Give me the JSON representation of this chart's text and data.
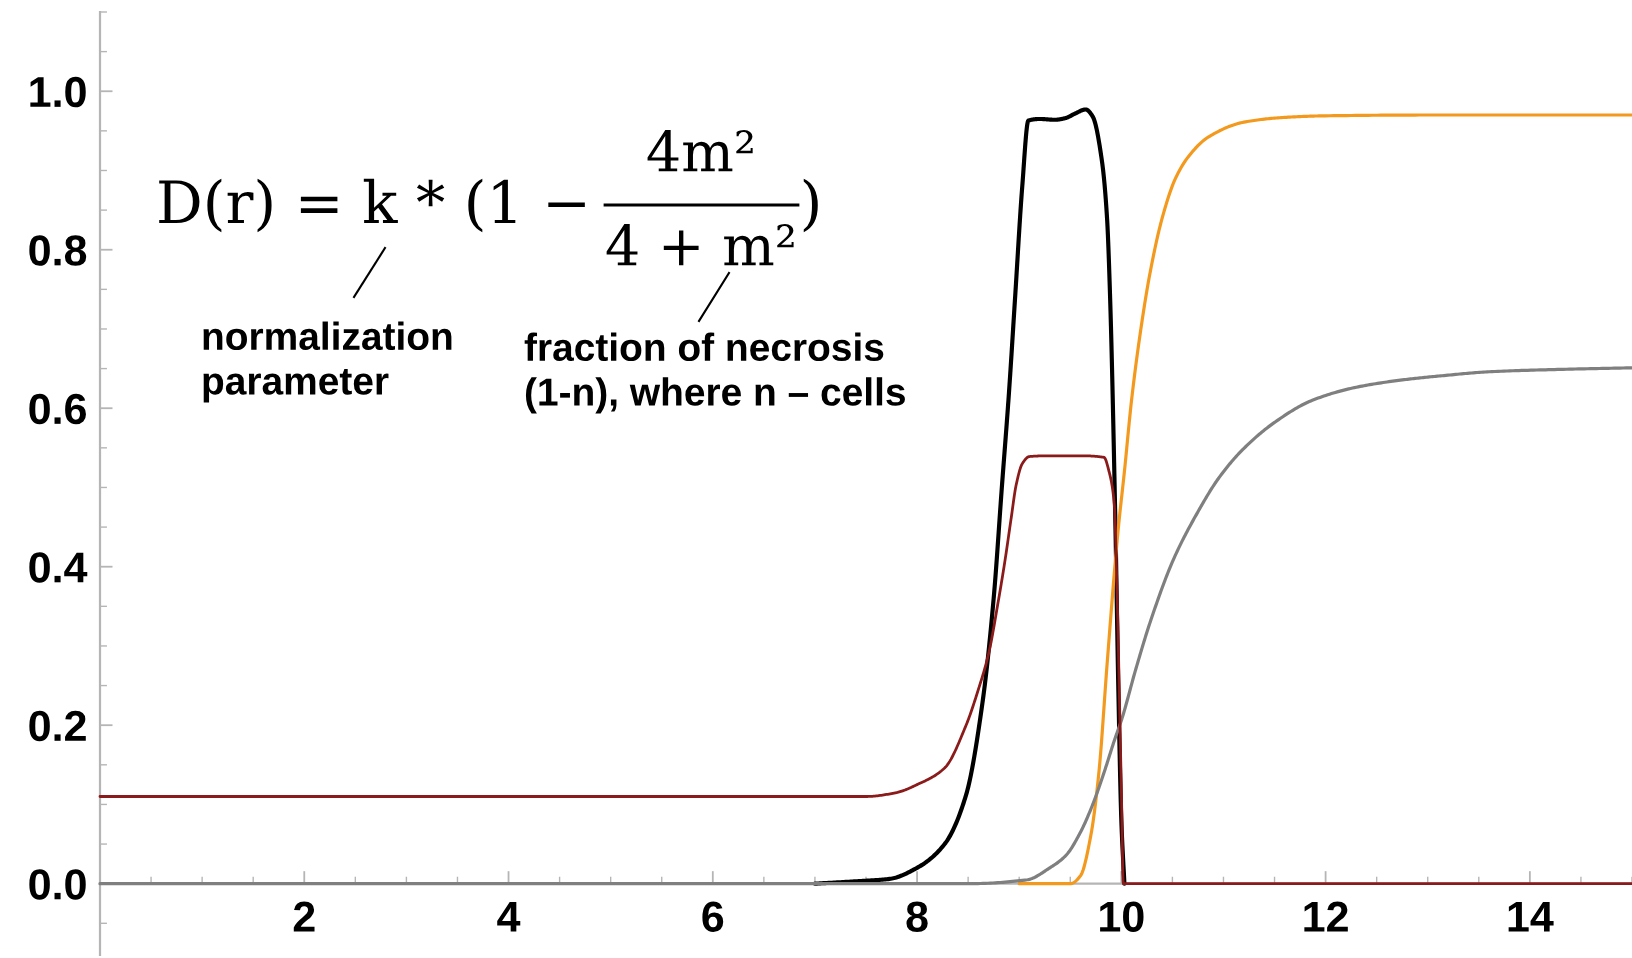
{
  "chart_data": {
    "type": "line",
    "series": [
      {
        "color": "#000000",
        "x": [
          7.0,
          7.4,
          7.73,
          8.0,
          8.27,
          8.48,
          8.64,
          8.75,
          8.83,
          8.9,
          8.96,
          9.03,
          9.09,
          9.2,
          9.35,
          9.45,
          9.55,
          9.65,
          9.72,
          9.81,
          9.86,
          9.89,
          9.94,
          9.97,
          10.0,
          10.03
        ],
        "values": [
          0,
          0.003,
          0.006,
          0.02,
          0.05,
          0.112,
          0.228,
          0.36,
          0.5,
          0.62,
          0.74,
          0.88,
          0.963,
          0.965,
          0.964,
          0.966,
          0.972,
          0.977,
          0.968,
          0.912,
          0.84,
          0.74,
          0.466,
          0.25,
          0.08,
          0
        ]
      },
      {
        "color": "#f39a1e",
        "x": [
          9.0,
          9.5,
          9.6,
          9.7,
          9.78,
          9.86,
          9.93,
          9.97,
          10.03,
          10.1,
          10.18,
          10.28,
          10.4,
          10.53,
          10.66,
          10.85,
          11.2,
          11.6,
          12.0,
          13.0,
          15.0
        ],
        "values": [
          0,
          0,
          0.01,
          0.06,
          0.14,
          0.276,
          0.39,
          0.448,
          0.52,
          0.61,
          0.69,
          0.77,
          0.84,
          0.89,
          0.918,
          0.942,
          0.961,
          0.967,
          0.969,
          0.97,
          0.97
        ]
      },
      {
        "color": "#7f7f7f",
        "x": [
          0,
          8.5,
          9.08,
          9.3,
          9.46,
          9.6,
          9.72,
          9.83,
          9.93,
          10.01,
          10.14,
          10.29,
          10.51,
          10.74,
          10.96,
          11.19,
          11.51,
          11.87,
          12.32,
          12.77,
          13.14,
          13.6,
          14.3,
          15.0
        ],
        "values": [
          0,
          0,
          0.005,
          0.02,
          0.036,
          0.065,
          0.1,
          0.14,
          0.18,
          0.21,
          0.27,
          0.333,
          0.409,
          0.467,
          0.513,
          0.548,
          0.583,
          0.61,
          0.627,
          0.636,
          0.641,
          0.646,
          0.649,
          0.651
        ]
      },
      {
        "color": "#8b1a1a",
        "x": [
          0,
          7.5,
          7.8,
          8.0,
          8.27,
          8.48,
          8.6,
          8.7,
          8.8,
          8.86,
          8.92,
          8.97,
          9.03,
          9.1,
          9.3,
          9.6,
          9.83,
          9.88,
          9.93,
          9.96,
          9.98,
          10.0,
          10.02,
          15.0
        ],
        "values": [
          0.11,
          0.11,
          0.115,
          0.125,
          0.146,
          0.2,
          0.245,
          0.29,
          0.36,
          0.407,
          0.46,
          0.503,
          0.53,
          0.539,
          0.54,
          0.54,
          0.538,
          0.52,
          0.48,
          0.36,
          0.242,
          0.12,
          0,
          0
        ]
      }
    ],
    "xlim": [
      0,
      15
    ],
    "ylim": [
      -0.09,
      1.1
    ],
    "xticks": [
      2,
      4,
      6,
      8,
      10,
      12,
      14
    ],
    "yticks": [
      {
        "value": 0,
        "label": "0.0"
      },
      {
        "value": 0.2,
        "label": "0.2"
      },
      {
        "value": 0.4,
        "label": "0.4"
      },
      {
        "value": 0.6,
        "label": "0.6"
      },
      {
        "value": 0.8,
        "label": "0.8"
      },
      {
        "value": 1.0,
        "label": "1.0"
      }
    ],
    "annotations": [
      "D(r) = k * (1 −",
      "4m²",
      "4 + m²",
      ")",
      "normalization\nparameter",
      "fraction of necrosis\n(1-n), where n – cells"
    ]
  }
}
